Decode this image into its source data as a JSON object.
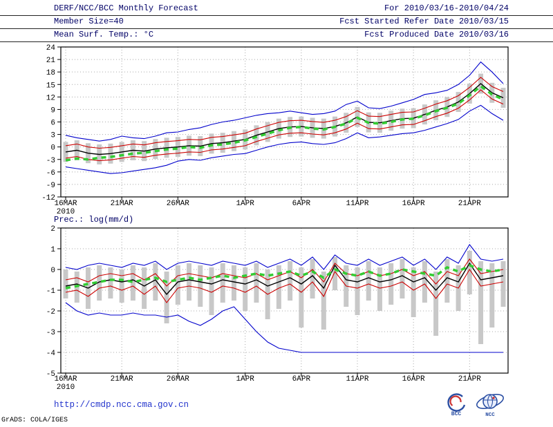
{
  "header": {
    "title": "DERF/NCC/BCC Monthly Forecast",
    "for_range": "For 2010/03/16-2010/04/24",
    "member_size": "Member Size=40",
    "fcst_started": "Fcst Started Refer Date 2010/03/15",
    "panel1_title": "Mean Surf. Temp.: °C",
    "fcst_produced": "Fcst Produced Date 2010/03/16"
  },
  "footer": {
    "link": "http://cmdp.ncc.cma.gov.cn",
    "grads_credit": "GrADS: COLA/IGES",
    "bcc_label": "BCC",
    "ncc_label": "NCC"
  },
  "colors": {
    "envelope_blue": "#0000cc",
    "bound_red": "#cc0000",
    "mean_black": "#000000",
    "dashed_green": "#33cc33",
    "spread_gray": "#c8c8c8",
    "link_blue": "#2233cc"
  },
  "chart_data": [
    {
      "type": "line",
      "name": "temperature-panel",
      "title": "Mean Surf. Temp.: °C",
      "ylabel": "°C",
      "xlabel": "",
      "ylim": [
        -12,
        24
      ],
      "ytick_step": 3,
      "n_days": 40,
      "grid": "dotted",
      "x_year_label": "2010",
      "xtick_indices": [
        0,
        5,
        10,
        16,
        21,
        26,
        31,
        36
      ],
      "xtick_labels": [
        "16MAR",
        "21MAR",
        "26MAR",
        "1APR",
        "6APR",
        "11APR",
        "16APR",
        "21APR"
      ],
      "bars": {
        "name": "ensemble-spread",
        "color": "#c8c8c8",
        "top": [
          1.2,
          1.6,
          0.9,
          0.6,
          0.8,
          1.2,
          1.6,
          1.4,
          1.9,
          2.2,
          2.4,
          2.7,
          2.6,
          3.2,
          3.4,
          3.8,
          4.2,
          5.2,
          6.0,
          6.8,
          7.2,
          7.3,
          7.0,
          6.8,
          7.3,
          8.2,
          9.6,
          8.3,
          8.2,
          8.7,
          9.2,
          9.3,
          10.2,
          11.2,
          12.0,
          13.2,
          15.2,
          17.6,
          15.4,
          14.2
        ],
        "bottom": [
          -3.6,
          -3.2,
          -3.9,
          -4.2,
          -4.0,
          -3.6,
          -3.2,
          -3.4,
          -2.9,
          -2.6,
          -2.4,
          -2.1,
          -2.2,
          -1.6,
          -1.4,
          -1.0,
          -0.6,
          0.4,
          1.2,
          2.0,
          2.4,
          2.5,
          2.2,
          2.0,
          2.5,
          3.4,
          4.8,
          3.5,
          3.4,
          3.9,
          4.4,
          4.5,
          5.4,
          6.4,
          7.2,
          8.4,
          10.4,
          12.8,
          10.6,
          9.4
        ]
      },
      "series": [
        {
          "name": "ensemble-max",
          "color": "#0000cc",
          "style": "solid",
          "values": [
            2.8,
            2.2,
            1.8,
            1.4,
            1.8,
            2.6,
            2.2,
            2.0,
            2.6,
            3.4,
            3.6,
            4.2,
            4.6,
            5.4,
            6.0,
            6.4,
            7.0,
            7.6,
            8.0,
            8.2,
            8.6,
            8.2,
            7.8,
            8.0,
            8.6,
            10.2,
            11.0,
            9.4,
            9.2,
            9.8,
            10.6,
            11.4,
            12.6,
            13.0,
            13.6,
            15.0,
            17.2,
            20.4,
            18.0,
            15.2
          ]
        },
        {
          "name": "upper-bound",
          "color": "#cc0000",
          "style": "solid",
          "values": [
            0.3,
            0.7,
            0.0,
            -0.3,
            -0.1,
            0.3,
            0.7,
            0.5,
            1.0,
            1.3,
            1.5,
            1.8,
            1.7,
            2.3,
            2.5,
            2.9,
            3.3,
            4.3,
            5.1,
            5.9,
            6.3,
            6.4,
            6.1,
            5.9,
            6.4,
            7.3,
            8.7,
            7.4,
            7.3,
            7.8,
            8.3,
            8.4,
            9.3,
            10.3,
            11.1,
            12.3,
            14.3,
            16.7,
            14.5,
            13.3
          ]
        },
        {
          "name": "lower-bound",
          "color": "#cc0000",
          "style": "solid",
          "values": [
            -2.7,
            -2.3,
            -3.0,
            -3.3,
            -3.1,
            -2.7,
            -2.3,
            -2.5,
            -2.0,
            -1.7,
            -1.5,
            -1.2,
            -1.3,
            -0.7,
            -0.5,
            -0.1,
            0.3,
            1.3,
            2.1,
            2.9,
            3.3,
            3.4,
            3.1,
            2.9,
            3.4,
            4.3,
            5.7,
            4.4,
            4.3,
            4.8,
            5.3,
            5.4,
            6.3,
            7.3,
            8.1,
            9.3,
            11.3,
            13.7,
            11.5,
            10.3
          ]
        },
        {
          "name": "ensemble-min",
          "color": "#0000cc",
          "style": "solid",
          "values": [
            -4.8,
            -5.2,
            -5.6,
            -6.0,
            -6.4,
            -6.2,
            -5.8,
            -5.4,
            -5.0,
            -4.4,
            -3.4,
            -3.0,
            -3.2,
            -2.6,
            -2.2,
            -1.8,
            -1.6,
            -0.8,
            0.0,
            0.6,
            1.0,
            1.2,
            0.8,
            0.6,
            1.0,
            2.0,
            3.4,
            2.2,
            2.4,
            2.8,
            3.2,
            3.4,
            4.0,
            4.8,
            5.6,
            6.6,
            8.6,
            10.0,
            8.0,
            6.4
          ]
        },
        {
          "name": "ensemble-mean",
          "color": "#000000",
          "style": "solid",
          "values": [
            -1.2,
            -0.8,
            -1.5,
            -1.8,
            -1.6,
            -1.2,
            -0.8,
            -1.0,
            -0.5,
            -0.2,
            0.0,
            0.3,
            0.2,
            0.8,
            1.0,
            1.4,
            1.8,
            2.8,
            3.6,
            4.4,
            4.8,
            4.9,
            4.6,
            4.4,
            4.9,
            5.8,
            7.2,
            5.9,
            5.8,
            6.3,
            6.8,
            6.9,
            7.8,
            8.8,
            9.6,
            10.8,
            12.8,
            15.2,
            13.0,
            11.8
          ]
        },
        {
          "name": "forecast-dashed",
          "color": "#33cc33",
          "style": "dashed",
          "values": [
            -3.2,
            -2.8,
            -3.0,
            -2.6,
            -2.4,
            -2.0,
            -1.6,
            -1.4,
            -1.0,
            -0.6,
            -0.4,
            0.0,
            -0.2,
            0.4,
            0.6,
            1.0,
            1.6,
            2.4,
            3.2,
            4.0,
            4.6,
            4.8,
            4.4,
            4.2,
            4.8,
            5.6,
            7.0,
            5.8,
            5.6,
            6.0,
            6.6,
            6.8,
            7.6,
            8.6,
            9.4,
            10.4,
            12.4,
            14.6,
            12.6,
            11.4
          ]
        }
      ]
    },
    {
      "type": "line",
      "name": "precipitation-panel",
      "title": "Prec.: log(mm/d)",
      "ylabel": "log(mm/d)",
      "xlabel": "",
      "ylim": [
        -5,
        2
      ],
      "ytick_step": 1,
      "n_days": 40,
      "grid": "dotted",
      "x_year_label": "2010",
      "xtick_indices": [
        0,
        5,
        10,
        16,
        21,
        26,
        31,
        36
      ],
      "xtick_labels": [
        "16MAR",
        "21MAR",
        "26MAR",
        "1APR",
        "6APR",
        "11APR",
        "16APR",
        "21APR"
      ],
      "bars": {
        "name": "ensemble-spread",
        "color": "#c8c8c8",
        "top": [
          0.0,
          -0.1,
          0.1,
          0.2,
          0.1,
          0.0,
          0.2,
          0.1,
          0.3,
          -0.1,
          0.2,
          0.3,
          0.2,
          0.1,
          0.3,
          0.2,
          0.1,
          0.3,
          0.0,
          0.2,
          0.4,
          0.1,
          0.5,
          -0.1,
          0.6,
          0.2,
          0.1,
          0.4,
          0.1,
          0.3,
          0.5,
          0.1,
          0.4,
          -0.1,
          0.5,
          0.2,
          0.9,
          0.4,
          0.3,
          0.4
        ],
        "bottom": [
          -1.4,
          -1.6,
          -1.9,
          -1.5,
          -1.4,
          -1.6,
          -1.5,
          -1.9,
          -1.5,
          -2.6,
          -1.7,
          -1.5,
          -1.8,
          -2.2,
          -1.6,
          -1.5,
          -2.0,
          -1.6,
          -2.4,
          -1.9,
          -1.5,
          -2.8,
          -1.4,
          -2.9,
          -1.0,
          -1.8,
          -2.2,
          -1.5,
          -2.0,
          -1.7,
          -1.4,
          -2.3,
          -1.6,
          -3.2,
          -1.6,
          -2.0,
          -1.2,
          -3.6,
          -2.8,
          -1.8
        ]
      },
      "series": [
        {
          "name": "ensemble-max",
          "color": "#0000cc",
          "style": "solid",
          "values": [
            0.1,
            0.0,
            0.2,
            0.3,
            0.2,
            0.1,
            0.3,
            0.2,
            0.4,
            0.0,
            0.3,
            0.4,
            0.3,
            0.2,
            0.4,
            0.3,
            0.2,
            0.4,
            0.1,
            0.3,
            0.5,
            0.2,
            0.6,
            0.0,
            0.7,
            0.3,
            0.2,
            0.5,
            0.2,
            0.4,
            0.6,
            0.2,
            0.5,
            0.0,
            0.6,
            0.3,
            1.2,
            0.5,
            0.4,
            0.5
          ]
        },
        {
          "name": "upper-bound",
          "color": "#cc0000",
          "style": "solid",
          "values": [
            -0.5,
            -0.4,
            -0.6,
            -0.3,
            -0.2,
            -0.3,
            -0.2,
            -0.5,
            -0.2,
            -0.8,
            -0.3,
            -0.2,
            -0.3,
            -0.4,
            -0.2,
            -0.3,
            -0.4,
            -0.2,
            -0.5,
            -0.3,
            -0.1,
            -0.4,
            0.0,
            -0.6,
            0.3,
            -0.2,
            -0.3,
            -0.1,
            -0.3,
            -0.2,
            0.0,
            -0.3,
            -0.1,
            -0.7,
            -0.1,
            -0.3,
            0.5,
            -0.2,
            -0.1,
            0.0
          ]
        },
        {
          "name": "lower-bound",
          "color": "#cc0000",
          "style": "solid",
          "values": [
            -1.1,
            -1.0,
            -1.3,
            -0.9,
            -0.8,
            -1.0,
            -0.8,
            -1.2,
            -0.8,
            -1.6,
            -0.9,
            -0.8,
            -0.9,
            -1.1,
            -0.8,
            -0.9,
            -1.1,
            -0.8,
            -1.2,
            -0.9,
            -0.7,
            -1.1,
            -0.6,
            -1.3,
            -0.1,
            -0.8,
            -0.9,
            -0.7,
            -0.9,
            -0.8,
            -0.6,
            -1.0,
            -0.7,
            -1.4,
            -0.7,
            -0.9,
            0.0,
            -0.8,
            -0.7,
            -0.6
          ]
        },
        {
          "name": "ensemble-min",
          "color": "#0000cc",
          "style": "solid",
          "values": [
            -1.6,
            -2.0,
            -2.2,
            -2.1,
            -2.2,
            -2.2,
            -2.1,
            -2.2,
            -2.2,
            -2.3,
            -2.2,
            -2.5,
            -2.7,
            -2.4,
            -2.0,
            -1.8,
            -2.4,
            -3.0,
            -3.5,
            -3.8,
            -3.9,
            -4.0,
            -4.0,
            -4.0,
            -4.0,
            -4.0,
            -4.0,
            -4.0,
            -4.0,
            -4.0,
            -4.0,
            -4.0,
            -4.0,
            -4.0,
            -4.0,
            -4.0,
            -4.0,
            -4.0,
            -4.0,
            -4.0
          ]
        },
        {
          "name": "ensemble-mean",
          "color": "#000000",
          "style": "solid",
          "values": [
            -0.8,
            -0.7,
            -0.9,
            -0.6,
            -0.5,
            -0.6,
            -0.5,
            -0.8,
            -0.5,
            -1.2,
            -0.6,
            -0.5,
            -0.6,
            -0.7,
            -0.5,
            -0.6,
            -0.7,
            -0.5,
            -0.8,
            -0.6,
            -0.4,
            -0.7,
            -0.3,
            -0.9,
            0.2,
            -0.5,
            -0.6,
            -0.4,
            -0.6,
            -0.5,
            -0.3,
            -0.6,
            -0.4,
            -1.0,
            -0.4,
            -0.6,
            0.3,
            -0.5,
            -0.4,
            -0.3
          ]
        },
        {
          "name": "forecast-dashed",
          "color": "#33cc33",
          "style": "dashed",
          "values": [
            -0.9,
            -0.8,
            -0.7,
            -0.6,
            -0.5,
            -0.5,
            -0.6,
            -0.5,
            -0.4,
            -0.6,
            -0.5,
            -0.4,
            -0.5,
            -0.4,
            -0.3,
            -0.4,
            -0.3,
            -0.2,
            -0.3,
            -0.2,
            -0.1,
            -0.3,
            -0.1,
            -0.4,
            0.0,
            -0.2,
            -0.3,
            -0.1,
            -0.3,
            -0.2,
            0.0,
            -0.1,
            -0.2,
            -0.3,
            0.1,
            -0.1,
            0.2,
            0.0,
            -0.1,
            0.0
          ]
        }
      ]
    }
  ]
}
